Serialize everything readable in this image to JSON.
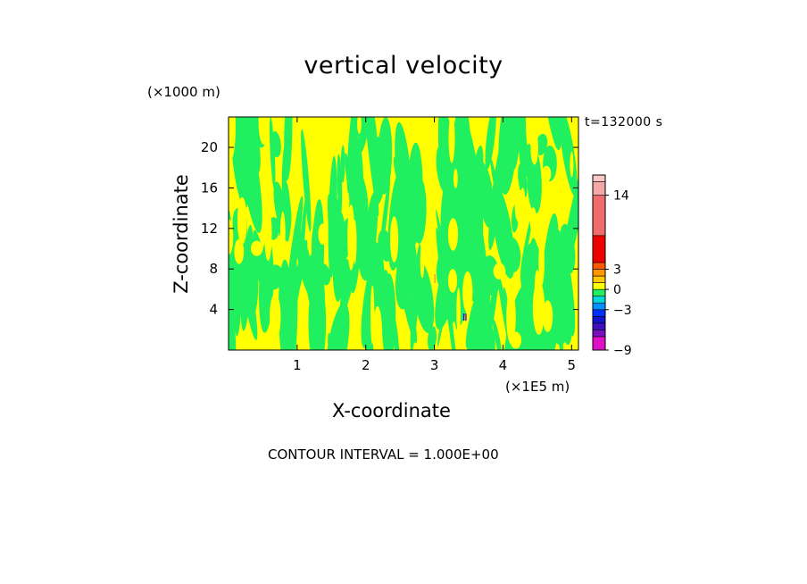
{
  "chart_data": {
    "type": "heatmap",
    "title": "vertical velocity",
    "xlabel": "X-coordinate",
    "ylabel": "Z-coordinate",
    "x_units": "(×1E5 m)",
    "z_units": "(×1000 m)",
    "time_label": "t=132000 s",
    "note": "CONTOUR INTERVAL = 1.000E+00",
    "xlim": [
      0,
      5.1
    ],
    "ylim": [
      0,
      23
    ],
    "x_ticks": [
      1,
      2,
      3,
      4,
      5
    ],
    "x_tick_labels": [
      "1",
      "2",
      "3",
      "4",
      "5"
    ],
    "y_ticks": [
      4,
      8,
      12,
      16,
      20
    ],
    "y_tick_labels": [
      "4",
      "8",
      "12",
      "16",
      "20"
    ],
    "dominant_values": [
      "0 to 1 (yellow)",
      "-1 to 0 (green)"
    ],
    "colorbar": {
      "min": -9,
      "max": 17,
      "labels": [
        {
          "value": 14,
          "text": "14"
        },
        {
          "value": 3,
          "text": "3"
        },
        {
          "value": 0,
          "text": "0"
        },
        {
          "value": -3,
          "text": "-3"
        },
        {
          "value": -9,
          "text": "-9"
        }
      ],
      "segments": [
        {
          "from": -9,
          "to": -7,
          "color": "#e010c8"
        },
        {
          "from": -7,
          "to": -6,
          "color": "#7a10c0"
        },
        {
          "from": -6,
          "to": -5,
          "color": "#4010c0"
        },
        {
          "from": -5,
          "to": -4,
          "color": "#1414d0"
        },
        {
          "from": -4,
          "to": -3,
          "color": "#0030ff"
        },
        {
          "from": -3,
          "to": -2,
          "color": "#0090ff"
        },
        {
          "from": -2,
          "to": -1,
          "color": "#00d8d8"
        },
        {
          "from": -1,
          "to": 0,
          "color": "#20f060"
        },
        {
          "from": 0,
          "to": 1,
          "color": "#ffff00"
        },
        {
          "from": 1,
          "to": 2,
          "color": "#ffc800"
        },
        {
          "from": 2,
          "to": 3,
          "color": "#ff9600"
        },
        {
          "from": 3,
          "to": 4,
          "color": "#ff5a00"
        },
        {
          "from": 4,
          "to": 8,
          "color": "#ee0000"
        },
        {
          "from": 8,
          "to": 14,
          "color": "#f06c6c"
        },
        {
          "from": 14,
          "to": 16,
          "color": "#f4a8a8"
        },
        {
          "from": 16,
          "to": 17,
          "color": "#f8c8c8"
        }
      ]
    }
  }
}
